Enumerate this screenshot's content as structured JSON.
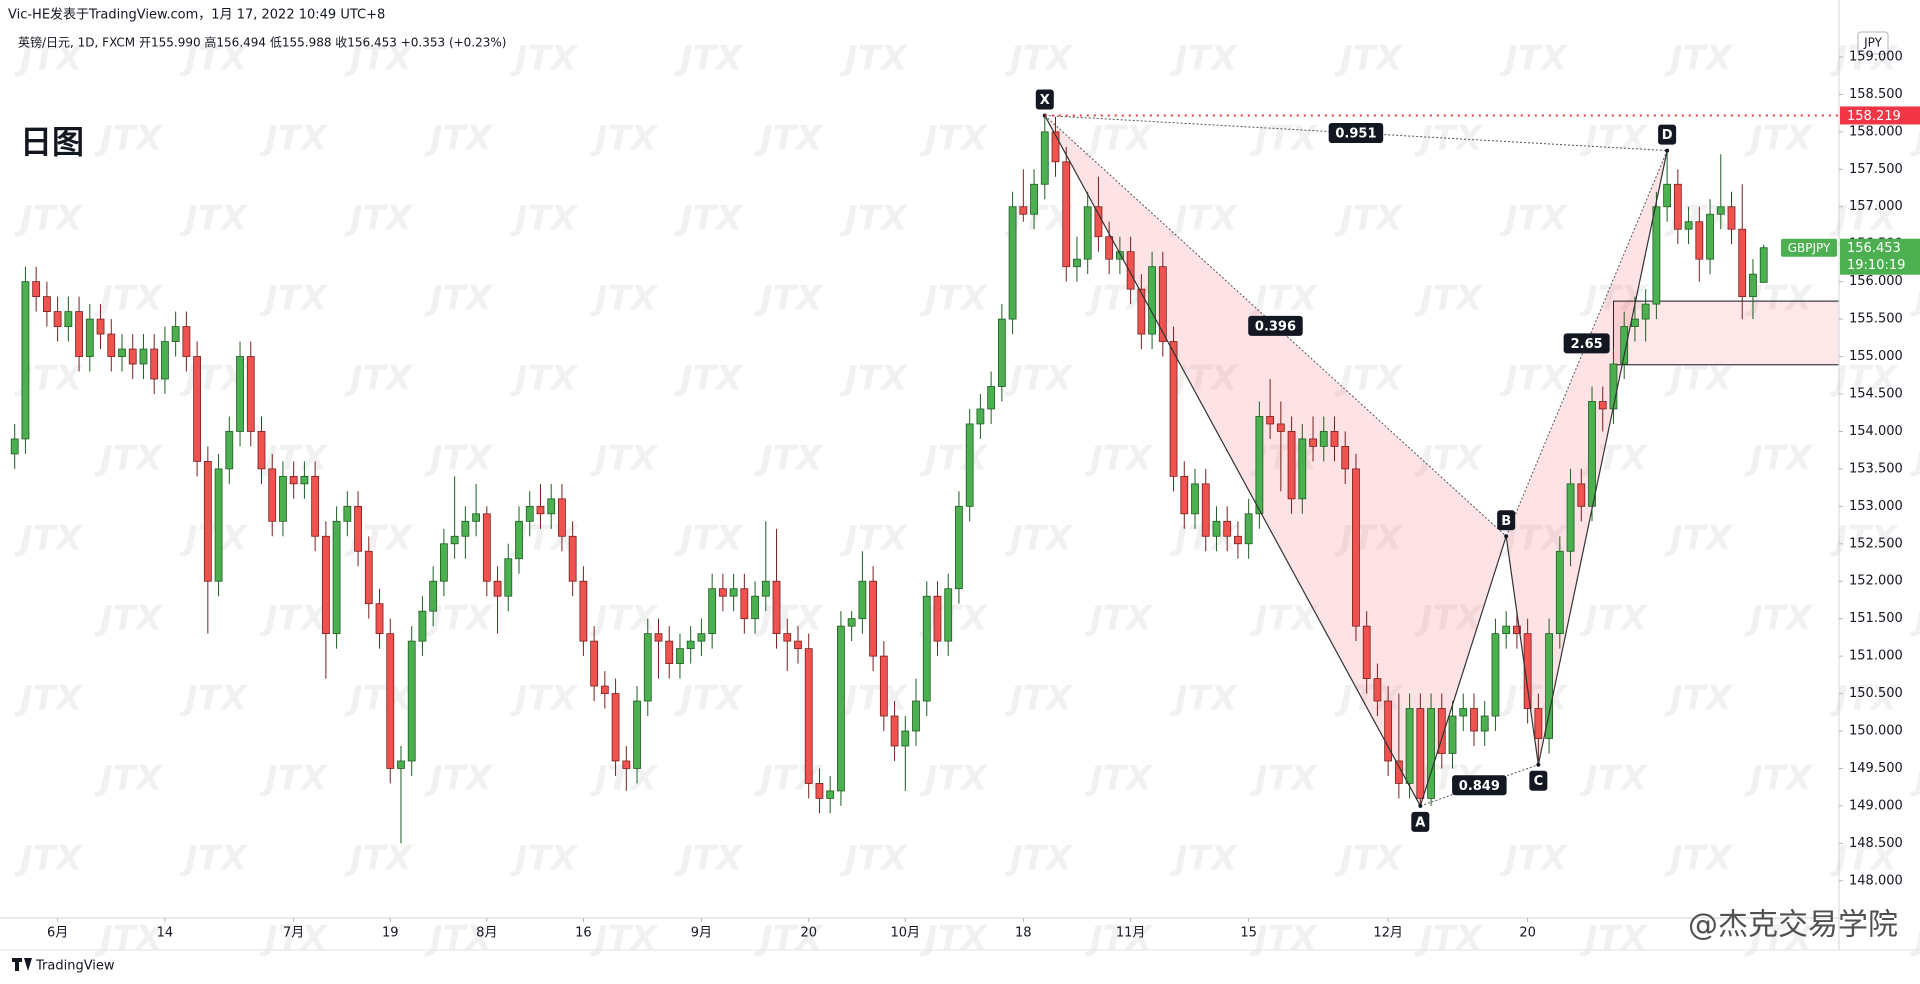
{
  "chart_data": {
    "type": "candlestick",
    "title": "日图",
    "author_line": "Vic-HE发表于TradingView.com，1月 17, 2022 10:49 UTC+8",
    "symbol_line": "英镑/日元, 1D, FXCM  开155.990 高156.494 低155.988 收156.453 +0.353 (+0.23%)",
    "currency": "JPY",
    "watermark": "JTX",
    "brand": "TradingView",
    "credit": "@杰克交易学院",
    "up_color": "#4caf50",
    "down_color": "#ef5350",
    "categories": [
      null,
      null,
      null,
      null,
      "6月",
      null,
      null,
      null,
      null,
      null,
      null,
      null,
      null,
      null,
      "14",
      null,
      null,
      null,
      null,
      null,
      null,
      null,
      null,
      null,
      null,
      null,
      "7月",
      null,
      null,
      null,
      null,
      null,
      null,
      null,
      null,
      "19",
      null,
      null,
      null,
      null,
      null,
      null,
      null,
      null,
      "8月",
      null,
      null,
      null,
      null,
      null,
      null,
      null,
      null,
      "16",
      null,
      null,
      null,
      null,
      null,
      null,
      null,
      null,
      null,
      null,
      "9月",
      null,
      null,
      null,
      null,
      null,
      null,
      null,
      null,
      null,
      "20",
      null,
      null,
      null,
      null,
      null,
      null,
      null,
      null,
      "10月",
      null,
      null,
      null,
      null,
      null,
      null,
      null,
      null,
      null,
      null,
      "18",
      null,
      null,
      null,
      null,
      null,
      null,
      null,
      null,
      null,
      "11月",
      null,
      null,
      null,
      null,
      null,
      null,
      null,
      null,
      null,
      null,
      "15",
      null,
      null,
      null,
      null,
      null,
      null,
      null,
      null,
      null,
      null,
      null,
      null,
      "12月",
      null,
      null,
      null,
      null,
      null,
      null,
      null,
      null,
      null,
      null,
      null,
      null,
      "20",
      null,
      null,
      null,
      null,
      null,
      null,
      null,
      null,
      null,
      null,
      null,
      null,
      null,
      null,
      null,
      null,
      null,
      null,
      null,
      null,
      null,
      null
    ],
    "ohlc": [
      [
        153.7,
        154.1,
        153.5,
        153.9
      ],
      [
        153.9,
        156.2,
        153.7,
        156.0
      ],
      [
        156.0,
        156.2,
        155.6,
        155.8
      ],
      [
        155.8,
        156.0,
        155.4,
        155.6
      ],
      [
        155.6,
        155.8,
        155.2,
        155.4
      ],
      [
        155.4,
        155.8,
        155.2,
        155.6
      ],
      [
        155.6,
        155.8,
        154.8,
        155.0
      ],
      [
        155.0,
        155.7,
        154.8,
        155.5
      ],
      [
        155.5,
        155.7,
        155.1,
        155.3
      ],
      [
        155.3,
        155.5,
        154.8,
        155.0
      ],
      [
        155.0,
        155.3,
        154.8,
        155.1
      ],
      [
        155.1,
        155.3,
        154.7,
        154.9
      ],
      [
        154.9,
        155.3,
        154.7,
        155.1
      ],
      [
        155.1,
        155.3,
        154.5,
        154.7
      ],
      [
        154.7,
        155.4,
        154.5,
        155.2
      ],
      [
        155.2,
        155.6,
        155.0,
        155.4
      ],
      [
        155.4,
        155.6,
        154.8,
        155.0
      ],
      [
        155.0,
        155.2,
        153.4,
        153.6
      ],
      [
        153.6,
        153.8,
        151.3,
        152.0
      ],
      [
        152.0,
        153.7,
        151.8,
        153.5
      ],
      [
        153.5,
        154.2,
        153.3,
        154.0
      ],
      [
        154.0,
        155.2,
        153.8,
        155.0
      ],
      [
        155.0,
        155.2,
        153.8,
        154.0
      ],
      [
        154.0,
        154.2,
        153.3,
        153.5
      ],
      [
        153.5,
        153.7,
        152.6,
        152.8
      ],
      [
        152.8,
        153.6,
        152.6,
        153.4
      ],
      [
        153.4,
        153.6,
        153.1,
        153.3
      ],
      [
        153.3,
        153.6,
        153.1,
        153.4
      ],
      [
        153.4,
        153.6,
        152.4,
        152.6
      ],
      [
        152.6,
        152.8,
        150.7,
        151.3
      ],
      [
        151.3,
        153.0,
        151.1,
        152.8
      ],
      [
        152.8,
        153.2,
        152.6,
        153.0
      ],
      [
        153.0,
        153.2,
        152.2,
        152.4
      ],
      [
        152.4,
        152.6,
        151.5,
        151.7
      ],
      [
        151.7,
        151.9,
        151.1,
        151.3
      ],
      [
        151.3,
        151.5,
        149.3,
        149.5
      ],
      [
        149.5,
        149.8,
        148.5,
        149.6
      ],
      [
        149.6,
        151.4,
        149.4,
        151.2
      ],
      [
        151.2,
        151.8,
        151.0,
        151.6
      ],
      [
        151.6,
        152.2,
        151.4,
        152.0
      ],
      [
        152.0,
        152.7,
        151.8,
        152.5
      ],
      [
        152.5,
        153.4,
        152.3,
        152.6
      ],
      [
        152.6,
        153.0,
        152.3,
        152.8
      ],
      [
        152.8,
        153.3,
        152.6,
        152.9
      ],
      [
        152.9,
        153.0,
        151.8,
        152.0
      ],
      [
        152.0,
        152.2,
        151.3,
        151.8
      ],
      [
        151.8,
        152.5,
        151.6,
        152.3
      ],
      [
        152.3,
        153.0,
        152.1,
        152.8
      ],
      [
        152.8,
        153.2,
        152.6,
        153.0
      ],
      [
        153.0,
        153.3,
        152.7,
        152.9
      ],
      [
        152.9,
        153.3,
        152.7,
        153.1
      ],
      [
        153.1,
        153.3,
        152.4,
        152.6
      ],
      [
        152.6,
        152.8,
        151.8,
        152.0
      ],
      [
        152.0,
        152.2,
        151.0,
        151.2
      ],
      [
        151.2,
        151.4,
        150.4,
        150.6
      ],
      [
        150.6,
        150.8,
        150.3,
        150.5
      ],
      [
        150.5,
        150.7,
        149.4,
        149.6
      ],
      [
        149.6,
        149.8,
        149.2,
        149.5
      ],
      [
        149.5,
        150.6,
        149.3,
        150.4
      ],
      [
        150.4,
        151.5,
        150.2,
        151.3
      ],
      [
        151.3,
        151.5,
        150.7,
        151.2
      ],
      [
        151.2,
        151.4,
        150.7,
        150.9
      ],
      [
        150.9,
        151.3,
        150.7,
        151.1
      ],
      [
        151.1,
        151.4,
        150.9,
        151.2
      ],
      [
        151.2,
        151.5,
        151.0,
        151.3
      ],
      [
        151.3,
        152.1,
        151.1,
        151.9
      ],
      [
        151.9,
        152.1,
        151.6,
        151.8
      ],
      [
        151.8,
        152.1,
        151.6,
        151.9
      ],
      [
        151.9,
        152.1,
        151.3,
        151.5
      ],
      [
        151.5,
        152.0,
        151.3,
        151.8
      ],
      [
        151.8,
        152.8,
        151.6,
        152.0
      ],
      [
        152.0,
        152.7,
        151.1,
        151.3
      ],
      [
        151.3,
        151.5,
        150.8,
        151.2
      ],
      [
        151.2,
        151.4,
        150.9,
        151.1
      ],
      [
        151.1,
        151.3,
        149.1,
        149.3
      ],
      [
        149.3,
        149.5,
        148.9,
        149.1
      ],
      [
        149.1,
        149.4,
        148.9,
        149.2
      ],
      [
        149.2,
        151.6,
        149.0,
        151.4
      ],
      [
        151.4,
        151.6,
        151.2,
        151.5
      ],
      [
        151.5,
        152.4,
        151.3,
        152.0
      ],
      [
        152.0,
        152.2,
        150.8,
        151.0
      ],
      [
        151.0,
        151.2,
        150.0,
        150.2
      ],
      [
        150.2,
        150.4,
        149.6,
        149.8
      ],
      [
        149.8,
        150.2,
        149.2,
        150.0
      ],
      [
        150.0,
        150.7,
        149.8,
        150.4
      ],
      [
        150.4,
        152.0,
        150.2,
        151.8
      ],
      [
        151.8,
        152.0,
        151.0,
        151.2
      ],
      [
        151.2,
        152.1,
        151.0,
        151.9
      ],
      [
        151.9,
        153.2,
        151.7,
        153.0
      ],
      [
        153.0,
        154.3,
        152.8,
        154.1
      ],
      [
        154.1,
        154.5,
        153.9,
        154.3
      ],
      [
        154.3,
        154.8,
        154.1,
        154.6
      ],
      [
        154.6,
        155.7,
        154.4,
        155.5
      ],
      [
        155.5,
        157.2,
        155.3,
        157.0
      ],
      [
        157.0,
        157.5,
        156.8,
        156.9
      ],
      [
        156.9,
        157.5,
        156.7,
        157.3
      ],
      [
        157.3,
        158.219,
        157.1,
        158.0
      ],
      [
        158.0,
        158.2,
        157.4,
        157.6
      ],
      [
        157.6,
        157.8,
        156.0,
        156.2
      ],
      [
        156.2,
        156.6,
        156.0,
        156.3
      ],
      [
        156.3,
        157.2,
        156.1,
        157.0
      ],
      [
        157.0,
        157.4,
        156.4,
        156.6
      ],
      [
        156.6,
        156.8,
        156.1,
        156.3
      ],
      [
        156.3,
        156.6,
        156.1,
        156.4
      ],
      [
        156.4,
        156.6,
        155.7,
        155.9
      ],
      [
        155.9,
        156.1,
        155.1,
        155.3
      ],
      [
        155.3,
        156.4,
        155.1,
        156.2
      ],
      [
        156.2,
        156.4,
        155.0,
        155.2
      ],
      [
        155.2,
        155.4,
        153.2,
        153.4
      ],
      [
        153.4,
        153.6,
        152.7,
        152.9
      ],
      [
        152.9,
        153.5,
        152.7,
        153.3
      ],
      [
        153.3,
        153.5,
        152.4,
        152.6
      ],
      [
        152.6,
        153.0,
        152.4,
        152.8
      ],
      [
        152.8,
        153.0,
        152.4,
        152.6
      ],
      [
        152.6,
        152.8,
        152.3,
        152.5
      ],
      [
        152.5,
        153.1,
        152.3,
        152.9
      ],
      [
        152.9,
        154.4,
        152.7,
        154.2
      ],
      [
        154.2,
        154.7,
        153.9,
        154.1
      ],
      [
        154.1,
        154.4,
        153.2,
        154.0
      ],
      [
        154.0,
        154.2,
        152.9,
        153.1
      ],
      [
        153.1,
        154.1,
        152.9,
        153.9
      ],
      [
        153.9,
        154.2,
        153.6,
        153.8
      ],
      [
        153.8,
        154.2,
        153.6,
        154.0
      ],
      [
        154.0,
        154.2,
        153.6,
        153.8
      ],
      [
        153.8,
        154.0,
        153.3,
        153.5
      ],
      [
        153.5,
        153.7,
        151.2,
        151.4
      ],
      [
        151.4,
        151.6,
        150.5,
        150.7
      ],
      [
        150.7,
        150.9,
        150.2,
        150.4
      ],
      [
        150.4,
        150.6,
        149.4,
        149.6
      ],
      [
        149.6,
        150.5,
        149.1,
        149.3
      ],
      [
        149.3,
        150.5,
        149.1,
        150.3
      ],
      [
        150.3,
        150.5,
        149.0,
        149.1
      ],
      [
        149.1,
        150.5,
        149.0,
        150.3
      ],
      [
        150.3,
        150.5,
        149.5,
        149.7
      ],
      [
        149.7,
        150.4,
        149.5,
        150.2
      ],
      [
        150.2,
        150.5,
        150.0,
        150.3
      ],
      [
        150.3,
        150.5,
        149.8,
        150.0
      ],
      [
        150.0,
        150.4,
        149.8,
        150.2
      ],
      [
        150.2,
        151.5,
        150.0,
        151.3
      ],
      [
        151.3,
        151.6,
        151.1,
        151.4
      ],
      [
        151.4,
        151.6,
        151.1,
        151.3
      ],
      [
        151.3,
        151.5,
        150.1,
        150.3
      ],
      [
        150.3,
        150.5,
        149.55,
        149.9
      ],
      [
        149.9,
        151.5,
        149.7,
        151.3
      ],
      [
        151.3,
        152.6,
        151.1,
        152.4
      ],
      [
        152.4,
        153.5,
        152.2,
        153.3
      ],
      [
        153.3,
        153.5,
        152.8,
        153.0
      ],
      [
        153.0,
        154.6,
        152.8,
        154.4
      ],
      [
        154.4,
        154.6,
        154.0,
        154.3
      ],
      [
        154.3,
        155.1,
        154.1,
        154.9
      ],
      [
        154.9,
        155.6,
        154.7,
        155.4
      ],
      [
        155.4,
        155.8,
        155.2,
        155.5
      ],
      [
        155.5,
        155.9,
        155.2,
        155.7
      ],
      [
        155.7,
        157.2,
        155.5,
        157.0
      ],
      [
        157.0,
        157.75,
        156.8,
        157.3
      ],
      [
        157.3,
        157.5,
        156.5,
        156.7
      ],
      [
        156.7,
        157.0,
        156.5,
        156.8
      ],
      [
        156.8,
        157.0,
        156.0,
        156.3
      ],
      [
        156.3,
        157.1,
        156.1,
        156.9
      ],
      [
        156.9,
        157.7,
        156.7,
        157.0
      ],
      [
        157.0,
        157.2,
        156.5,
        156.7
      ],
      [
        156.7,
        157.3,
        155.5,
        155.8
      ],
      [
        155.8,
        156.3,
        155.5,
        156.1
      ],
      [
        155.99,
        156.494,
        155.988,
        156.453
      ]
    ],
    "ylim": [
      147.53,
      159.44
    ],
    "yticks": [
      {
        "value": 148,
        "label": "148.000"
      },
      {
        "value": 148.5,
        "label": "148.500"
      },
      {
        "value": 149,
        "label": "149.000"
      },
      {
        "value": 149.5,
        "label": "149.500"
      },
      {
        "value": 150,
        "label": "150.000"
      },
      {
        "value": 150.5,
        "label": "150.500"
      },
      {
        "value": 151,
        "label": "151.000"
      },
      {
        "value": 151.5,
        "label": "151.500"
      },
      {
        "value": 152,
        "label": "152.000"
      },
      {
        "value": 152.5,
        "label": "152.500"
      },
      {
        "value": 153,
        "label": "153.000"
      },
      {
        "value": 153.5,
        "label": "153.500"
      },
      {
        "value": 154,
        "label": "154.000"
      },
      {
        "value": 154.5,
        "label": "154.500"
      },
      {
        "value": 155,
        "label": "155.000"
      },
      {
        "value": 155.5,
        "label": "155.500"
      },
      {
        "value": 156,
        "label": "156.000"
      },
      {
        "value": 156.5,
        "label": "156.500"
      },
      {
        "value": 157,
        "label": "157.000"
      },
      {
        "value": 157.5,
        "label": "157.500"
      },
      {
        "value": 158,
        "label": "158.000"
      },
      {
        "value": 158.5,
        "label": "158.500"
      },
      {
        "value": 159,
        "label": "159.000"
      }
    ],
    "grid": false,
    "price_lines": [
      {
        "value": 158.219,
        "color": "#f23645"
      }
    ],
    "last": {
      "symbol": "GBPJPY",
      "price": 156.453,
      "countdown": "19:10:19",
      "color": "#4caf50"
    },
    "zone": {
      "from": 149,
      "low": 154.89,
      "high": 155.74
    },
    "pattern": {
      "points": [
        {
          "label": "X",
          "x": 96,
          "price": 158.219
        },
        {
          "label": "A",
          "x": 131,
          "price": 149.0
        },
        {
          "label": "B",
          "x": 139,
          "price": 152.6
        },
        {
          "label": "C",
          "x": 142,
          "price": 149.55
        },
        {
          "label": "D",
          "x": 154,
          "price": 157.75
        }
      ],
      "ratios": {
        "XB": 0.396,
        "XD": 0.951,
        "AC": 0.849,
        "BD": 2.65
      }
    }
  }
}
